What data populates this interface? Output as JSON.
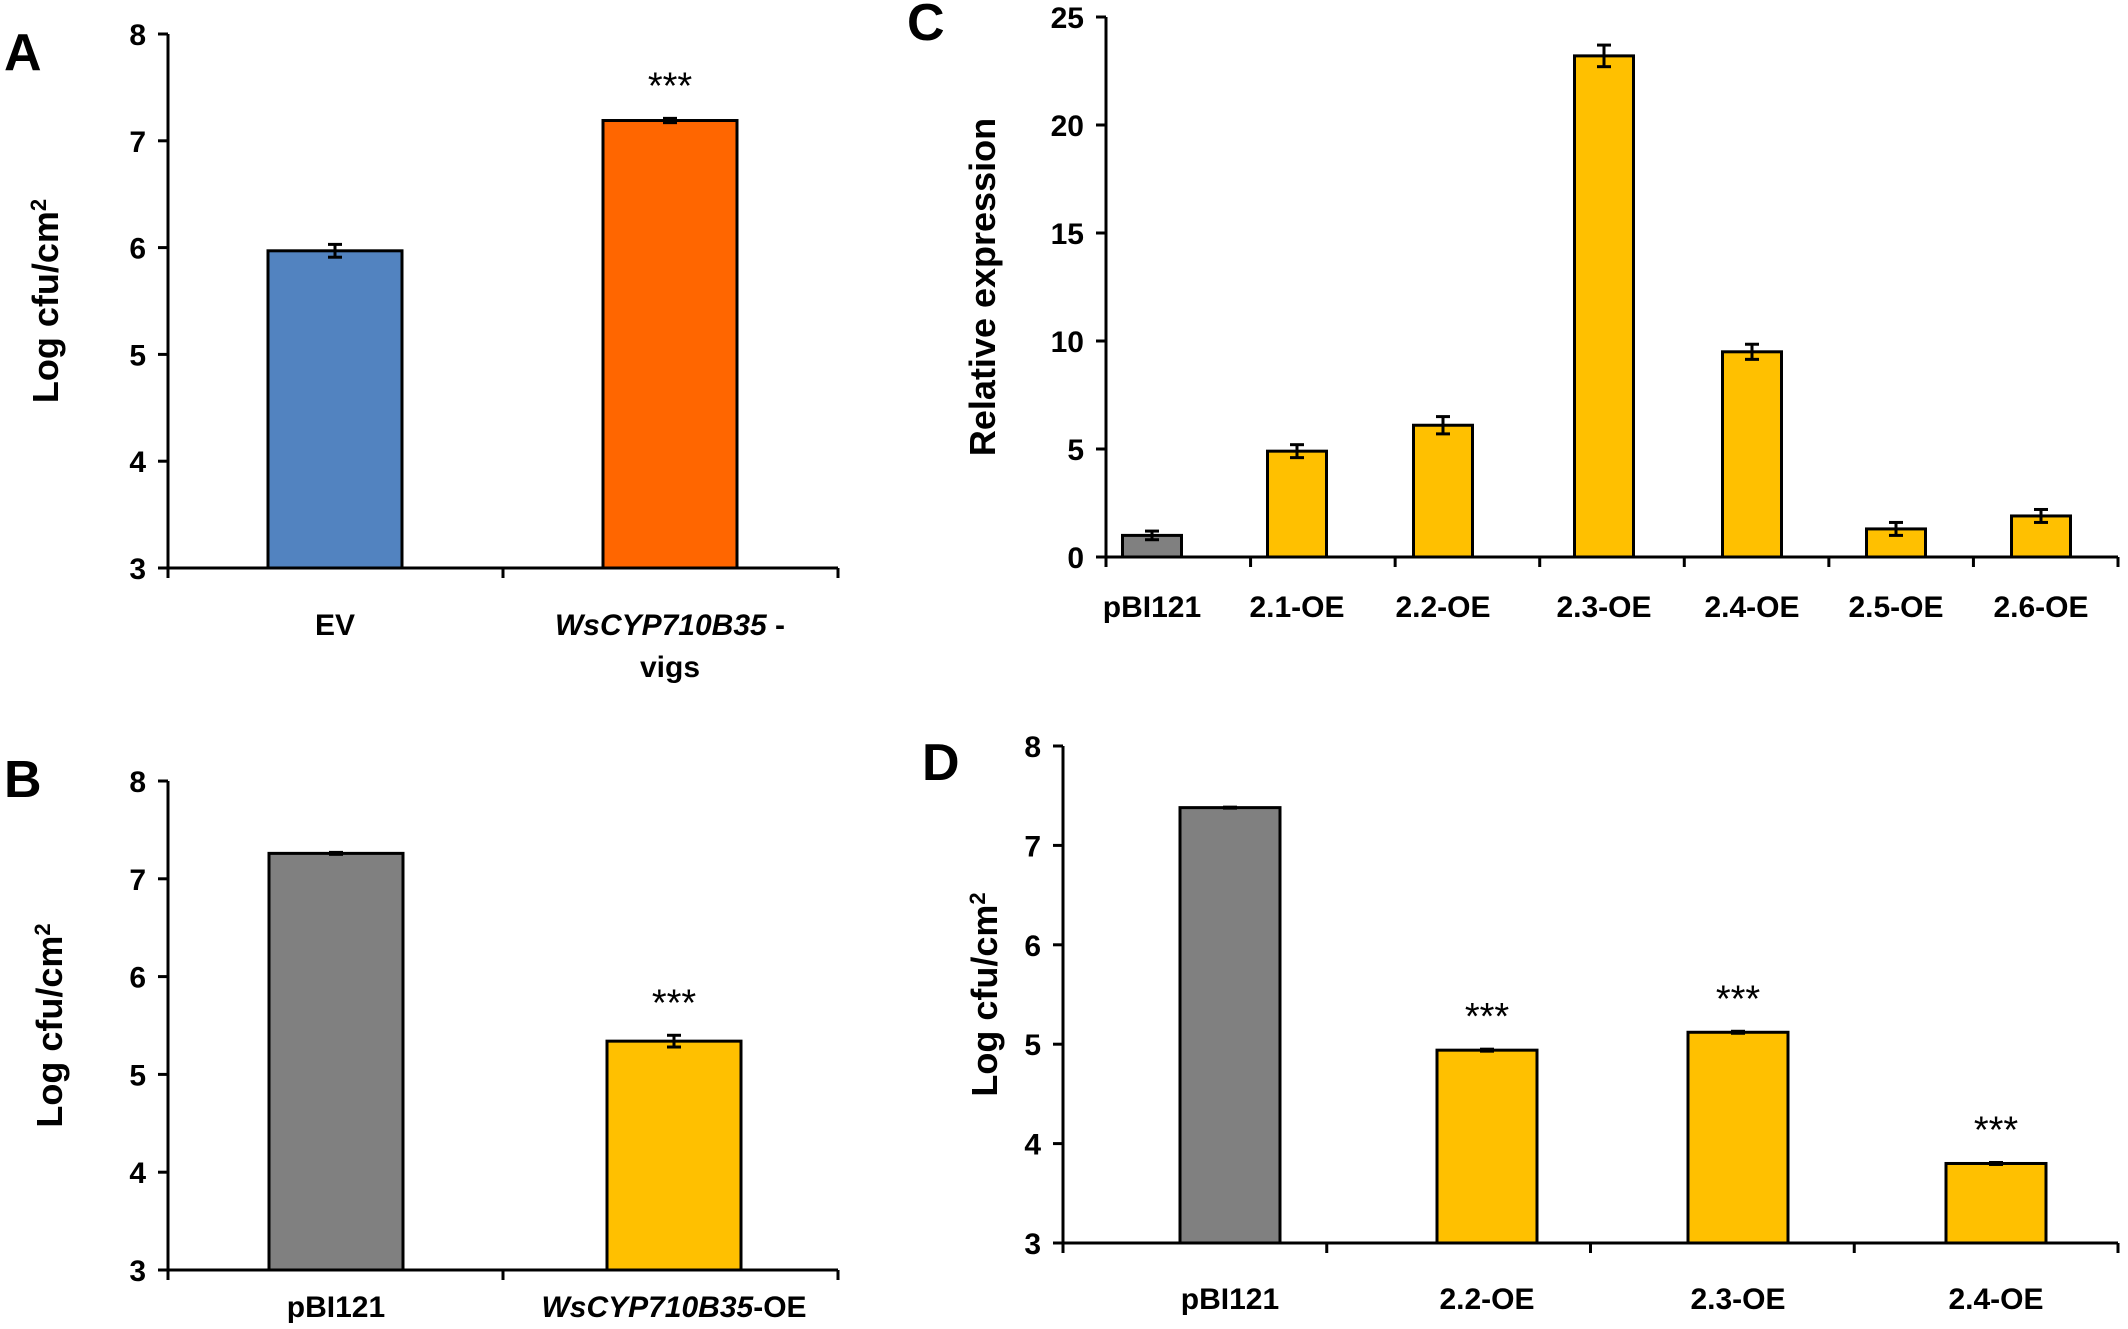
{
  "colors": {
    "blue": "#5283c0",
    "orange": "#ff6600",
    "gray": "#808080",
    "yellow": "#ffc000",
    "stroke": "#000000"
  },
  "chart_data": [
    {
      "panel": "A",
      "type": "bar",
      "ylabel": "Log cfu/cm",
      "ylabel_sup": "2",
      "ylim": [
        3,
        8
      ],
      "yticks": [
        3,
        4,
        5,
        6,
        7,
        8
      ],
      "categories": [
        {
          "lines": [
            {
              "text": "EV",
              "italic": false
            }
          ]
        },
        {
          "lines": [
            {
              "text": "WsCYP710B35",
              "italic": true,
              "suffix": " -"
            },
            {
              "text": "vigs",
              "italic": false
            }
          ]
        }
      ],
      "values": [
        5.97,
        7.19
      ],
      "errors": [
        0.06,
        0.02
      ],
      "colors": [
        "blue",
        "orange"
      ],
      "annotations": [
        "",
        "***"
      ]
    },
    {
      "panel": "B",
      "type": "bar",
      "ylabel": "Log cfu/cm",
      "ylabel_sup": "2",
      "ylim": [
        3,
        8
      ],
      "yticks": [
        3,
        4,
        5,
        6,
        7,
        8
      ],
      "categories": [
        {
          "lines": [
            {
              "text": "pBI121",
              "italic": false
            }
          ]
        },
        {
          "lines": [
            {
              "text": "WsCYP710B35",
              "italic": true,
              "suffix": "-OE"
            }
          ]
        }
      ],
      "values": [
        7.26,
        5.34
      ],
      "errors": [
        0.01,
        0.06
      ],
      "colors": [
        "gray",
        "yellow"
      ],
      "annotations": [
        "",
        "***"
      ]
    },
    {
      "panel": "C",
      "type": "bar",
      "ylabel": "Relative expression",
      "ylabel_sup": "",
      "ylim": [
        0,
        25
      ],
      "yticks": [
        0,
        5,
        10,
        15,
        20,
        25
      ],
      "categories": [
        {
          "lines": [
            {
              "text": "pBI121",
              "italic": false
            }
          ]
        },
        {
          "lines": [
            {
              "text": "2.1-OE",
              "italic": false
            }
          ]
        },
        {
          "lines": [
            {
              "text": "2.2-OE",
              "italic": false
            }
          ]
        },
        {
          "lines": [
            {
              "text": "2.3-OE",
              "italic": false
            }
          ]
        },
        {
          "lines": [
            {
              "text": "2.4-OE",
              "italic": false
            }
          ]
        },
        {
          "lines": [
            {
              "text": "2.5-OE",
              "italic": false
            }
          ]
        },
        {
          "lines": [
            {
              "text": "2.6-OE",
              "italic": false
            }
          ]
        }
      ],
      "values": [
        1.0,
        4.9,
        6.1,
        23.2,
        9.5,
        1.3,
        1.9
      ],
      "errors": [
        0.2,
        0.3,
        0.4,
        0.5,
        0.35,
        0.3,
        0.3
      ],
      "colors": [
        "gray",
        "yellow",
        "yellow",
        "yellow",
        "yellow",
        "yellow",
        "yellow"
      ],
      "annotations": [
        "",
        "",
        "",
        "",
        "",
        "",
        ""
      ]
    },
    {
      "panel": "D",
      "type": "bar",
      "ylabel": "Log cfu/cm",
      "ylabel_sup": "2",
      "ylim": [
        3,
        8
      ],
      "yticks": [
        3,
        4,
        5,
        6,
        7,
        8
      ],
      "categories": [
        {
          "lines": [
            {
              "text": "pBI121",
              "italic": false
            }
          ]
        },
        {
          "lines": [
            {
              "text": "2.2-OE",
              "italic": false
            }
          ]
        },
        {
          "lines": [
            {
              "text": "2.3-OE",
              "italic": false
            }
          ]
        },
        {
          "lines": [
            {
              "text": "2.4-OE",
              "italic": false
            }
          ]
        }
      ],
      "values": [
        7.38,
        4.94,
        5.12,
        3.8
      ],
      "errors": [
        0.005,
        0.01,
        0.01,
        0.01
      ],
      "colors": [
        "gray",
        "yellow",
        "yellow",
        "yellow"
      ],
      "annotations": [
        "",
        "***",
        "***",
        "***"
      ]
    }
  ]
}
